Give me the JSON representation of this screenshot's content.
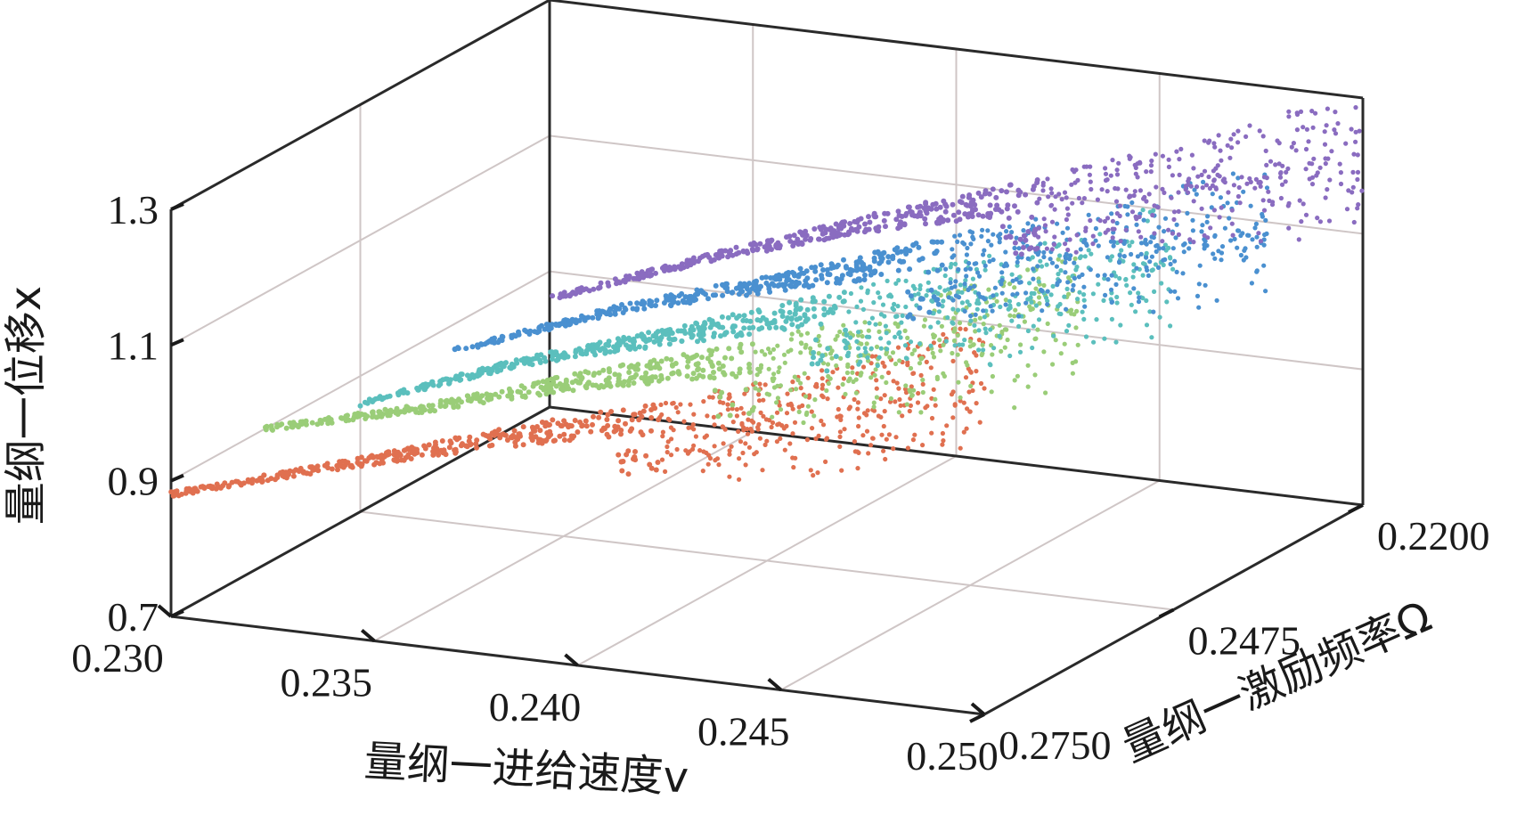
{
  "chart_data": {
    "type": "scatter",
    "projection": "3d",
    "grid": true,
    "xlabel": "量纲一进给速度v",
    "ylabel": "量纲一激励频率Ω",
    "zlabel": "量纲一位移x",
    "x_ticks": [
      "0.230",
      "0.235",
      "0.240",
      "0.245",
      "0.250"
    ],
    "y_ticks": [
      "0.2200",
      "0.2475",
      "0.2750"
    ],
    "z_ticks": [
      "0.7",
      "0.9",
      "1.1",
      "1.3"
    ],
    "xlim": [
      0.23,
      0.25
    ],
    "ylim": [
      0.22,
      0.275
    ],
    "zlim": [
      0.7,
      1.3
    ],
    "series": [
      {
        "color": "#e07050",
        "x_range": [
          0.23,
          0.25
        ],
        "omega": 0.275,
        "points": [
          [
            0.23,
            0.88
          ],
          [
            0.234,
            0.95
          ],
          [
            0.238,
            1.02
          ],
          [
            0.242,
            1.08
          ],
          [
            0.246,
            1.14
          ],
          [
            0.25,
            1.22
          ]
        ]
      },
      {
        "color": "#9acd78",
        "x_range": [
          0.23,
          0.25
        ],
        "omega": 0.2613,
        "points": [
          [
            0.23,
            0.9
          ],
          [
            0.234,
            0.96
          ],
          [
            0.238,
            1.03
          ],
          [
            0.242,
            1.09
          ],
          [
            0.246,
            1.16
          ],
          [
            0.25,
            1.24
          ]
        ]
      },
      {
        "color": "#5bbfbd",
        "x_range": [
          0.23,
          0.25
        ],
        "omega": 0.2475,
        "points": [
          [
            0.23,
            0.86
          ],
          [
            0.234,
            0.95
          ],
          [
            0.238,
            1.02
          ],
          [
            0.242,
            1.09
          ],
          [
            0.246,
            1.16
          ],
          [
            0.25,
            1.24
          ]
        ]
      },
      {
        "color": "#4a90d0",
        "x_range": [
          0.23,
          0.25
        ],
        "omega": 0.2338,
        "points": [
          [
            0.23,
            0.86
          ],
          [
            0.234,
            0.95
          ],
          [
            0.238,
            1.02
          ],
          [
            0.242,
            1.09
          ],
          [
            0.246,
            1.15
          ],
          [
            0.25,
            1.22
          ]
        ]
      },
      {
        "color": "#8a6cc0",
        "x_range": [
          0.23,
          0.25
        ],
        "omega": 0.22,
        "points": [
          [
            0.23,
            0.86
          ],
          [
            0.234,
            0.95
          ],
          [
            0.238,
            1.03
          ],
          [
            0.242,
            1.1
          ],
          [
            0.246,
            1.17
          ],
          [
            0.25,
            1.25
          ]
        ]
      }
    ]
  }
}
